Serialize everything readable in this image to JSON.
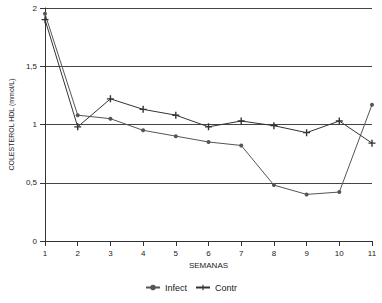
{
  "chart_data": {
    "type": "line",
    "x_label": "SEMANAS",
    "y_label": "COLESTEROL HDL (mmol/L)",
    "categories": [
      "1",
      "2",
      "3",
      "4",
      "5",
      "6",
      "7",
      "8",
      "9",
      "10",
      "11"
    ],
    "series": [
      {
        "name": "Infect",
        "color": "#555555",
        "marker": "circle",
        "values": [
          1.95,
          1.08,
          1.05,
          0.95,
          0.9,
          0.85,
          0.82,
          0.48,
          0.4,
          0.42,
          1.17
        ]
      },
      {
        "name": "Contr",
        "color": "#333333",
        "marker": "plus",
        "values": [
          1.9,
          0.98,
          1.22,
          1.13,
          1.08,
          0.98,
          1.03,
          0.99,
          0.93,
          1.03,
          0.84
        ]
      }
    ],
    "ylim": [
      0,
      2
    ],
    "yticks": [
      0,
      {
        "value": 0.5,
        "label": "0,5"
      },
      1,
      {
        "value": 1.5,
        "label": "1,5"
      },
      2
    ],
    "grid": true,
    "legend": "bottom"
  }
}
